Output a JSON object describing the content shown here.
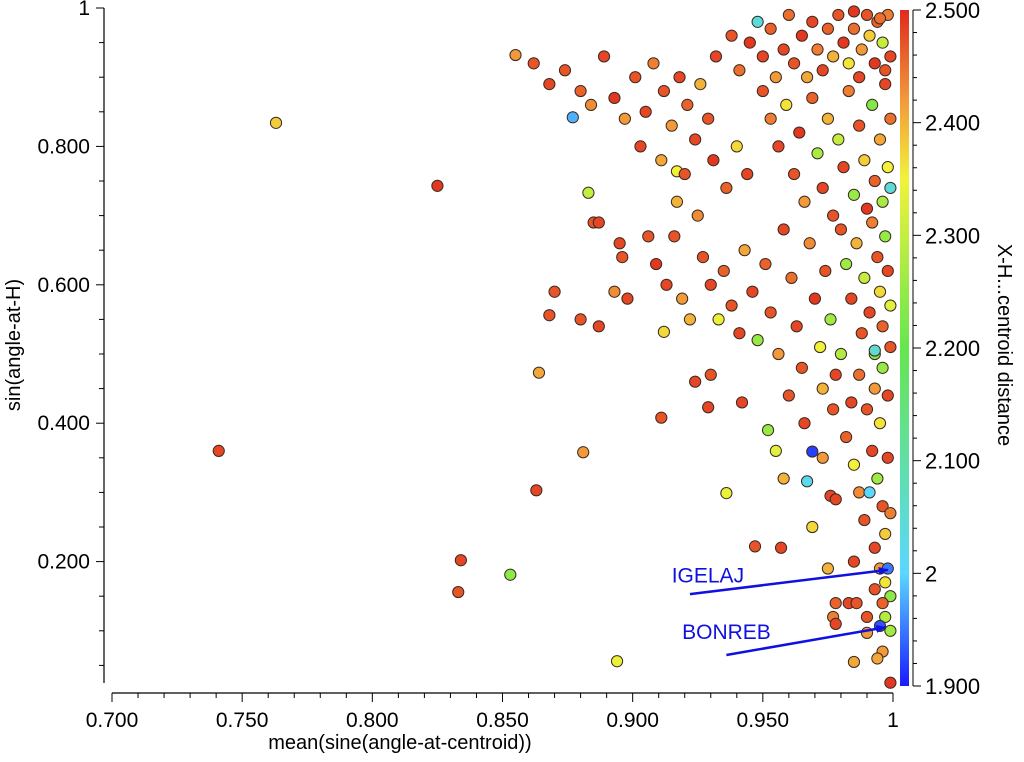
{
  "chart_data": {
    "type": "scatter",
    "title": "",
    "xlabel": "mean(sine(angle-at-centroid))",
    "ylabel": "sin(angle-at-H)",
    "xlim": [
      0.7,
      1.0
    ],
    "ylim": [
      0.0,
      1.0
    ],
    "x_ticks": [
      0.7,
      0.75,
      0.8,
      0.85,
      0.9,
      0.95,
      1.0
    ],
    "x_tick_labels": [
      "0.700",
      "0.750",
      "0.800",
      "0.850",
      "0.900",
      "0.950",
      "1"
    ],
    "y_ticks": [
      0.2,
      0.4,
      0.6,
      0.8,
      1.0
    ],
    "y_tick_labels": [
      "0.200",
      "0.400",
      "0.600",
      "0.800",
      "1"
    ],
    "grid": false,
    "colorbar": {
      "label": "X-H...centroid distance",
      "range": [
        1.9,
        2.5
      ],
      "ticks": [
        1.9,
        2.0,
        2.1,
        2.2,
        2.3,
        2.4,
        2.5
      ],
      "tick_labels": [
        "1.900",
        "2",
        "2.100",
        "2.200",
        "2.300",
        "2.400",
        "2.500"
      ],
      "colormap": [
        "#1a1aff",
        "#5ad8ff",
        "#66e64d",
        "#f2f23a",
        "#f29a3a",
        "#e02a1e"
      ]
    },
    "annotations": [
      {
        "text": "IGELAJ",
        "text_at": [
          0.915,
          0.17
        ],
        "arrow_from": [
          0.922,
          0.153
        ],
        "arrow_to": [
          0.998,
          0.188
        ],
        "color": "#1010e0"
      },
      {
        "text": "BONREB",
        "text_at": [
          0.919,
          0.088
        ],
        "arrow_from": [
          0.936,
          0.065
        ],
        "arrow_to": [
          0.997,
          0.105
        ],
        "color": "#1010e0"
      }
    ],
    "points": [
      [
        0.741,
        0.36,
        2.48
      ],
      [
        0.763,
        0.834,
        2.38
      ],
      [
        0.825,
        0.743,
        2.49
      ],
      [
        0.834,
        0.202,
        2.48
      ],
      [
        0.833,
        0.156,
        2.47
      ],
      [
        0.853,
        0.181,
        2.24
      ],
      [
        0.855,
        0.932,
        2.42
      ],
      [
        0.863,
        0.303,
        2.48
      ],
      [
        0.864,
        0.473,
        2.41
      ],
      [
        0.868,
        0.556,
        2.47
      ],
      [
        0.877,
        0.842,
        1.98
      ],
      [
        0.883,
        0.733,
        2.3
      ],
      [
        0.881,
        0.358,
        2.42
      ],
      [
        0.894,
        0.056,
        2.34
      ],
      [
        0.893,
        0.59,
        2.43
      ],
      [
        0.911,
        0.408,
        2.47
      ],
      [
        0.912,
        0.532,
        2.37
      ],
      [
        0.917,
        0.764,
        2.35
      ],
      [
        0.929,
        0.423,
        2.48
      ],
      [
        0.936,
        0.299,
        2.34
      ],
      [
        0.947,
        0.222,
        2.47
      ],
      [
        0.969,
        0.359,
        1.92
      ],
      [
        0.967,
        0.316,
        2.02
      ],
      [
        0.976,
        0.295,
        2.48
      ],
      [
        0.99,
        0.097,
        2.42
      ],
      [
        0.985,
        0.055,
        2.41
      ],
      [
        0.999,
        0.025,
        2.49
      ],
      [
        0.932,
        0.93,
        2.48
      ],
      [
        0.938,
        0.96,
        2.47
      ],
      [
        0.941,
        0.91,
        2.45
      ],
      [
        0.945,
        0.95,
        2.49
      ],
      [
        0.948,
        0.98,
        2.04
      ],
      [
        0.95,
        0.93,
        2.48
      ],
      [
        0.953,
        0.97,
        2.46
      ],
      [
        0.955,
        0.9,
        2.42
      ],
      [
        0.958,
        0.94,
        2.48
      ],
      [
        0.96,
        0.99,
        2.45
      ],
      [
        0.962,
        0.92,
        2.47
      ],
      [
        0.965,
        0.96,
        2.49
      ],
      [
        0.967,
        0.9,
        2.41
      ],
      [
        0.969,
        0.98,
        2.48
      ],
      [
        0.971,
        0.94,
        2.44
      ],
      [
        0.973,
        0.91,
        2.48
      ],
      [
        0.975,
        0.97,
        2.46
      ],
      [
        0.977,
        0.93,
        2.4
      ],
      [
        0.979,
        0.99,
        2.47
      ],
      [
        0.981,
        0.95,
        2.49
      ],
      [
        0.983,
        0.92,
        2.36
      ],
      [
        0.985,
        0.97,
        2.45
      ],
      [
        0.987,
        0.9,
        2.48
      ],
      [
        0.988,
        0.94,
        2.42
      ],
      [
        0.99,
        0.99,
        2.47
      ],
      [
        0.991,
        0.96,
        2.38
      ],
      [
        0.993,
        0.92,
        2.49
      ],
      [
        0.994,
        0.98,
        2.46
      ],
      [
        0.996,
        0.95,
        2.3
      ],
      [
        0.997,
        0.91,
        2.47
      ],
      [
        0.998,
        0.99,
        2.44
      ],
      [
        0.999,
        0.93,
        2.48
      ],
      [
        0.985,
        0.995,
        2.49
      ],
      [
        0.995,
        0.985,
        2.45
      ],
      [
        0.862,
        0.92,
        2.47
      ],
      [
        0.868,
        0.89,
        2.48
      ],
      [
        0.874,
        0.91,
        2.47
      ],
      [
        0.88,
        0.88,
        2.46
      ],
      [
        0.884,
        0.86,
        2.43
      ],
      [
        0.889,
        0.93,
        2.48
      ],
      [
        0.893,
        0.87,
        2.49
      ],
      [
        0.897,
        0.84,
        2.42
      ],
      [
        0.901,
        0.9,
        2.47
      ],
      [
        0.905,
        0.85,
        2.48
      ],
      [
        0.908,
        0.92,
        2.44
      ],
      [
        0.912,
        0.88,
        2.47
      ],
      [
        0.915,
        0.83,
        2.42
      ],
      [
        0.918,
        0.9,
        2.48
      ],
      [
        0.921,
        0.86,
        2.46
      ],
      [
        0.924,
        0.81,
        2.48
      ],
      [
        0.926,
        0.89,
        2.4
      ],
      [
        0.929,
        0.84,
        2.47
      ],
      [
        0.903,
        0.8,
        2.48
      ],
      [
        0.911,
        0.78,
        2.41
      ],
      [
        0.92,
        0.76,
        2.47
      ],
      [
        0.917,
        0.72,
        2.4
      ],
      [
        0.925,
        0.7,
        2.43
      ],
      [
        0.931,
        0.78,
        2.49
      ],
      [
        0.936,
        0.74,
        2.46
      ],
      [
        0.94,
        0.8,
        2.37
      ],
      [
        0.944,
        0.76,
        2.48
      ],
      [
        0.885,
        0.69,
        2.47
      ],
      [
        0.887,
        0.69,
        2.48
      ],
      [
        0.895,
        0.66,
        2.48
      ],
      [
        0.896,
        0.64,
        2.47
      ],
      [
        0.898,
        0.58,
        2.48
      ],
      [
        0.906,
        0.67,
        2.47
      ],
      [
        0.909,
        0.63,
        2.49
      ],
      [
        0.913,
        0.6,
        2.48
      ],
      [
        0.916,
        0.67,
        2.47
      ],
      [
        0.919,
        0.58,
        2.42
      ],
      [
        0.922,
        0.55,
        2.4
      ],
      [
        0.927,
        0.64,
        2.47
      ],
      [
        0.93,
        0.6,
        2.48
      ],
      [
        0.933,
        0.55,
        2.34
      ],
      [
        0.935,
        0.62,
        2.46
      ],
      [
        0.938,
        0.57,
        2.47
      ],
      [
        0.941,
        0.53,
        2.48
      ],
      [
        0.943,
        0.65,
        2.41
      ],
      [
        0.946,
        0.59,
        2.48
      ],
      [
        0.948,
        0.52,
        2.25
      ],
      [
        0.951,
        0.63,
        2.46
      ],
      [
        0.953,
        0.56,
        2.47
      ],
      [
        0.956,
        0.5,
        2.42
      ],
      [
        0.958,
        0.68,
        2.48
      ],
      [
        0.961,
        0.61,
        2.45
      ],
      [
        0.963,
        0.54,
        2.48
      ],
      [
        0.965,
        0.48,
        2.47
      ],
      [
        0.968,
        0.66,
        2.43
      ],
      [
        0.97,
        0.58,
        2.49
      ],
      [
        0.972,
        0.51,
        2.35
      ],
      [
        0.974,
        0.62,
        2.47
      ],
      [
        0.976,
        0.55,
        2.26
      ],
      [
        0.978,
        0.47,
        2.48
      ],
      [
        0.88,
        0.55,
        2.47
      ],
      [
        0.887,
        0.54,
        2.48
      ],
      [
        0.87,
        0.59,
        2.47
      ],
      [
        0.924,
        0.46,
        2.48
      ],
      [
        0.93,
        0.47,
        2.47
      ],
      [
        0.942,
        0.43,
        2.48
      ],
      [
        0.95,
        0.88,
        2.47
      ],
      [
        0.953,
        0.84,
        2.44
      ],
      [
        0.956,
        0.8,
        2.48
      ],
      [
        0.959,
        0.86,
        2.36
      ],
      [
        0.962,
        0.76,
        2.47
      ],
      [
        0.964,
        0.82,
        2.49
      ],
      [
        0.966,
        0.72,
        2.42
      ],
      [
        0.969,
        0.87,
        2.46
      ],
      [
        0.971,
        0.79,
        2.27
      ],
      [
        0.973,
        0.74,
        2.48
      ],
      [
        0.975,
        0.84,
        2.4
      ],
      [
        0.977,
        0.7,
        2.47
      ],
      [
        0.979,
        0.81,
        2.3
      ],
      [
        0.981,
        0.77,
        2.48
      ],
      [
        0.983,
        0.88,
        2.44
      ],
      [
        0.985,
        0.73,
        2.25
      ],
      [
        0.987,
        0.83,
        2.47
      ],
      [
        0.989,
        0.78,
        2.38
      ],
      [
        0.99,
        0.71,
        2.49
      ],
      [
        0.992,
        0.86,
        2.23
      ],
      [
        0.993,
        0.75,
        2.46
      ],
      [
        0.995,
        0.81,
        2.41
      ],
      [
        0.996,
        0.72,
        2.27
      ],
      [
        0.997,
        0.89,
        2.48
      ],
      [
        0.998,
        0.77,
        2.35
      ],
      [
        0.999,
        0.84,
        2.45
      ],
      [
        0.999,
        0.74,
        2.04
      ],
      [
        0.98,
        0.68,
        2.47
      ],
      [
        0.982,
        0.63,
        2.26
      ],
      [
        0.984,
        0.58,
        2.48
      ],
      [
        0.986,
        0.66,
        2.4
      ],
      [
        0.988,
        0.53,
        2.47
      ],
      [
        0.989,
        0.61,
        2.3
      ],
      [
        0.991,
        0.56,
        2.48
      ],
      [
        0.992,
        0.69,
        2.44
      ],
      [
        0.993,
        0.5,
        2.24
      ],
      [
        0.994,
        0.64,
        2.47
      ],
      [
        0.995,
        0.59,
        2.37
      ],
      [
        0.996,
        0.54,
        2.46
      ],
      [
        0.997,
        0.67,
        2.25
      ],
      [
        0.998,
        0.62,
        2.48
      ],
      [
        0.999,
        0.57,
        2.33
      ],
      [
        0.999,
        0.51,
        2.47
      ],
      [
        0.996,
        0.48,
        2.25
      ],
      [
        0.993,
        0.45,
        2.42
      ],
      [
        0.99,
        0.42,
        2.47
      ],
      [
        0.995,
        0.4,
        2.36
      ],
      [
        0.998,
        0.44,
        2.48
      ],
      [
        0.987,
        0.47,
        2.45
      ],
      [
        0.984,
        0.43,
        2.48
      ],
      [
        0.98,
        0.5,
        2.28
      ],
      [
        0.977,
        0.42,
        2.47
      ],
      [
        0.973,
        0.45,
        2.4
      ],
      [
        0.993,
        0.505,
        2.05
      ],
      [
        0.96,
        0.44,
        2.47
      ],
      [
        0.966,
        0.4,
        2.48
      ],
      [
        0.952,
        0.39,
        2.25
      ],
      [
        0.955,
        0.36,
        2.33
      ],
      [
        0.958,
        0.32,
        2.4
      ],
      [
        0.973,
        0.35,
        2.42
      ],
      [
        0.978,
        0.29,
        2.48
      ],
      [
        0.982,
        0.38,
        2.46
      ],
      [
        0.985,
        0.34,
        2.35
      ],
      [
        0.987,
        0.3,
        2.43
      ],
      [
        0.989,
        0.26,
        2.47
      ],
      [
        0.991,
        0.3,
        2.0
      ],
      [
        0.992,
        0.36,
        2.48
      ],
      [
        0.994,
        0.32,
        2.26
      ],
      [
        0.996,
        0.28,
        2.47
      ],
      [
        0.997,
        0.24,
        2.38
      ],
      [
        0.998,
        0.35,
        2.48
      ],
      [
        0.999,
        0.27,
        2.44
      ],
      [
        0.993,
        0.22,
        2.48
      ],
      [
        0.995,
        0.19,
        2.42
      ],
      [
        0.998,
        0.19,
        1.95
      ],
      [
        0.997,
        0.17,
        2.36
      ],
      [
        0.993,
        0.16,
        2.47
      ],
      [
        0.999,
        0.15,
        2.24
      ],
      [
        0.996,
        0.14,
        2.46
      ],
      [
        0.997,
        0.12,
        2.28
      ],
      [
        0.995,
        0.107,
        1.93
      ],
      [
        0.999,
        0.1,
        2.26
      ],
      [
        0.983,
        0.14,
        2.48
      ],
      [
        0.978,
        0.14,
        2.46
      ],
      [
        0.977,
        0.12,
        2.44
      ],
      [
        0.978,
        0.11,
        2.48
      ],
      [
        0.986,
        0.14,
        2.47
      ],
      [
        0.969,
        0.25,
        2.37
      ],
      [
        0.975,
        0.19,
        2.4
      ],
      [
        0.957,
        0.22,
        2.48
      ],
      [
        0.996,
        0.07,
        2.42
      ],
      [
        0.985,
        0.2,
        2.48
      ],
      [
        0.99,
        0.12,
        2.47
      ],
      [
        0.994,
        0.06,
        2.41
      ]
    ]
  }
}
